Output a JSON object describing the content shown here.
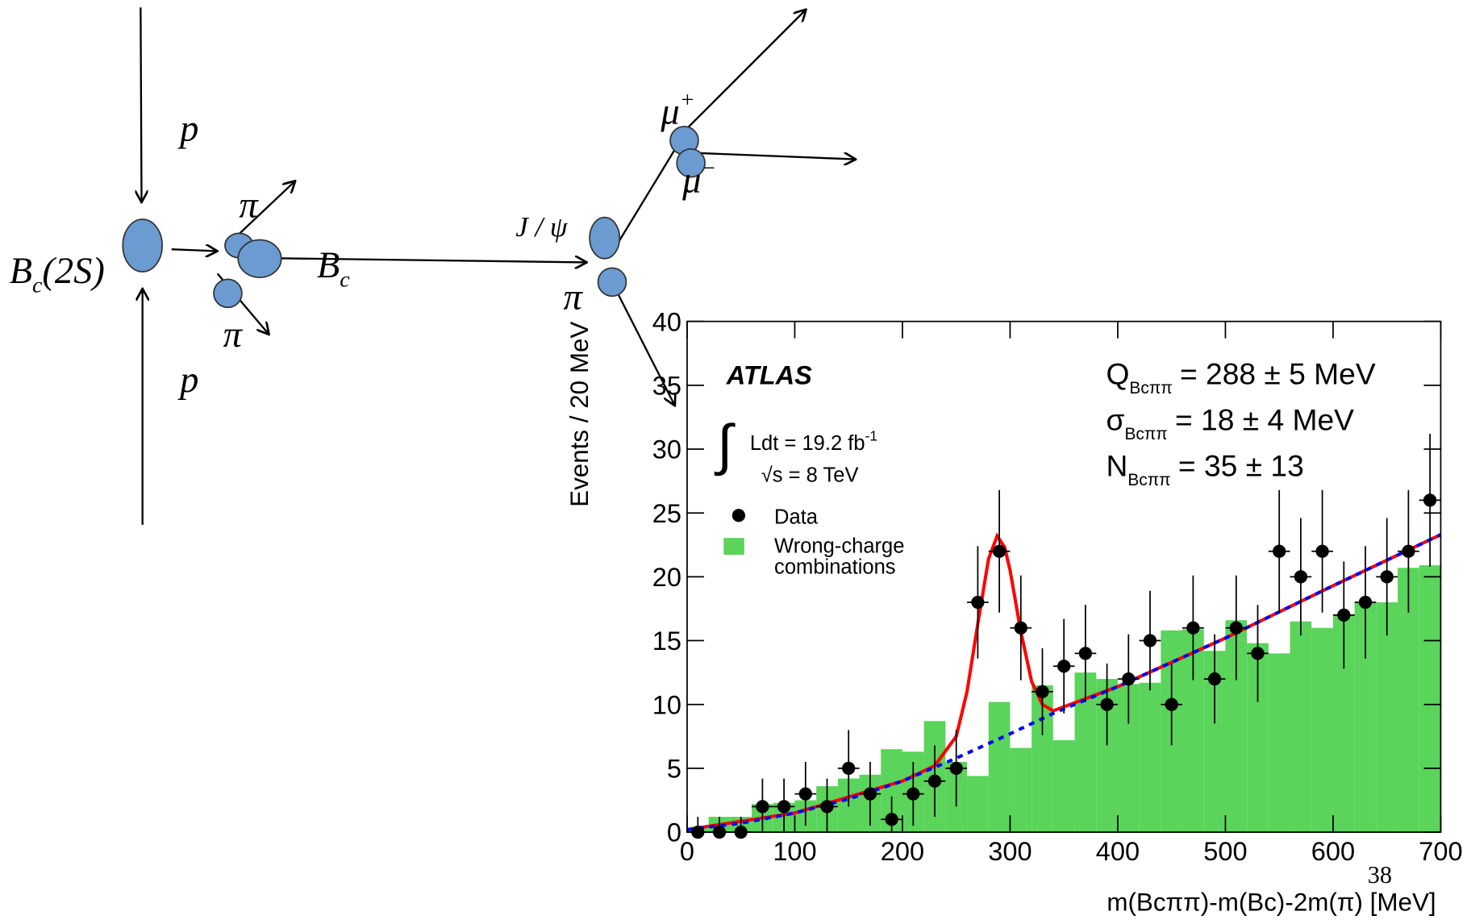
{
  "diagram": {
    "labels": [
      {
        "text": "p"
      },
      {
        "text": "p"
      },
      {
        "text": "B",
        "sub": "c",
        "after": "(2S)"
      },
      {
        "text": "π"
      },
      {
        "text": "π"
      },
      {
        "text": "B",
        "sub": "c"
      },
      {
        "text": "J / ψ"
      },
      {
        "text": "π"
      },
      {
        "text": "μ",
        "sup": "+"
      },
      {
        "text": "μ",
        "sup": "−"
      }
    ]
  },
  "page_number": "38",
  "chart_data": {
    "type": "histogram",
    "xlabel": "m(Bcππ)-m(Bc)-2m(π) [MeV]",
    "ylabel": "Events / 20 MeV",
    "xlim": [
      0,
      700
    ],
    "ylim": [
      0,
      40
    ],
    "xticks": [
      0,
      100,
      200,
      300,
      400,
      500,
      600,
      700
    ],
    "yticks": [
      0,
      5,
      10,
      15,
      20,
      25,
      30,
      35,
      40
    ],
    "annotations": {
      "experiment": "ATLAS",
      "luminosity": "Ldt = 19.2 fb",
      "luminosity_sup": "-1",
      "energy": "√s = 8 TeV",
      "fit": [
        {
          "symbol": "Q",
          "sub": "Bcππ",
          "text": "= 288 ± 5 MeV"
        },
        {
          "symbol": "σ",
          "sub": "Bcππ",
          "text": "= 18 ± 4 MeV"
        },
        {
          "symbol": "N",
          "sub": "Bcππ",
          "text": "= 35 ± 13"
        }
      ]
    },
    "bins": [
      0,
      20,
      40,
      60,
      80,
      100,
      120,
      140,
      160,
      180,
      200,
      220,
      240,
      260,
      280,
      300,
      320,
      340,
      360,
      380,
      400,
      420,
      440,
      460,
      480,
      500,
      520,
      540,
      560,
      580,
      600,
      620,
      640,
      660,
      680,
      700
    ],
    "series": [
      {
        "name": "Wrong-charge combinations",
        "color": "#5ad45a",
        "kind": "histogram",
        "values": [
          0.3,
          1.2,
          1.2,
          2.2,
          2.3,
          2.5,
          3.6,
          4.2,
          4.5,
          6.5,
          6.3,
          8.7,
          5.5,
          4.4,
          10.2,
          6.6,
          11.5,
          7.2,
          12.5,
          12.0,
          11.6,
          11.7,
          15.8,
          15.9,
          14.2,
          16.6,
          14.8,
          14.0,
          16.5,
          16.0,
          17.0,
          18.0,
          18.0,
          20.7,
          20.9
        ]
      },
      {
        "name": "Data",
        "color": "#000000",
        "kind": "points",
        "x": [
          10,
          30,
          50,
          70,
          90,
          110,
          130,
          150,
          170,
          190,
          210,
          230,
          250,
          270,
          290,
          310,
          330,
          350,
          370,
          390,
          410,
          430,
          450,
          470,
          490,
          510,
          530,
          550,
          570,
          590,
          610,
          630,
          650,
          670,
          690
        ],
        "values": [
          0,
          0,
          0,
          2,
          2,
          3,
          2,
          5,
          3,
          1,
          3,
          4,
          5,
          18,
          22,
          16,
          11,
          13,
          14,
          10,
          12,
          15,
          10,
          16,
          12,
          16,
          14,
          22,
          20,
          22,
          17,
          18,
          20,
          22,
          26
        ],
        "errors": [
          1.2,
          1.2,
          1.2,
          2.2,
          2.2,
          2.5,
          2.2,
          3.0,
          2.5,
          1.8,
          2.5,
          2.8,
          3.0,
          4.4,
          4.8,
          4.1,
          3.4,
          3.7,
          3.8,
          3.2,
          3.5,
          3.9,
          3.2,
          4.1,
          3.5,
          4.1,
          3.8,
          4.8,
          4.6,
          4.8,
          4.2,
          4.4,
          4.6,
          4.8,
          5.2
        ]
      },
      {
        "kind": "fit",
        "color": "#ff0000",
        "x": [
          0,
          100,
          200,
          230,
          250,
          260,
          270,
          280,
          288,
          295,
          300,
          310,
          320,
          330,
          340,
          400,
          500,
          600,
          700
        ],
        "values": [
          0.2,
          1.5,
          4.0,
          5.2,
          7.5,
          11.0,
          16.3,
          21.4,
          23.2,
          22.3,
          20.5,
          15.7,
          11.8,
          10.0,
          9.5,
          11.4,
          15.2,
          19.3,
          23.3
        ]
      },
      {
        "kind": "background",
        "color": "#0000ff",
        "x": [
          0,
          50,
          100,
          150,
          200,
          250,
          300,
          340,
          400,
          500,
          600,
          700
        ],
        "values": [
          0.2,
          0.7,
          1.5,
          2.6,
          4.0,
          5.8,
          7.7,
          9.3,
          11.4,
          15.2,
          19.3,
          23.3
        ]
      }
    ]
  }
}
